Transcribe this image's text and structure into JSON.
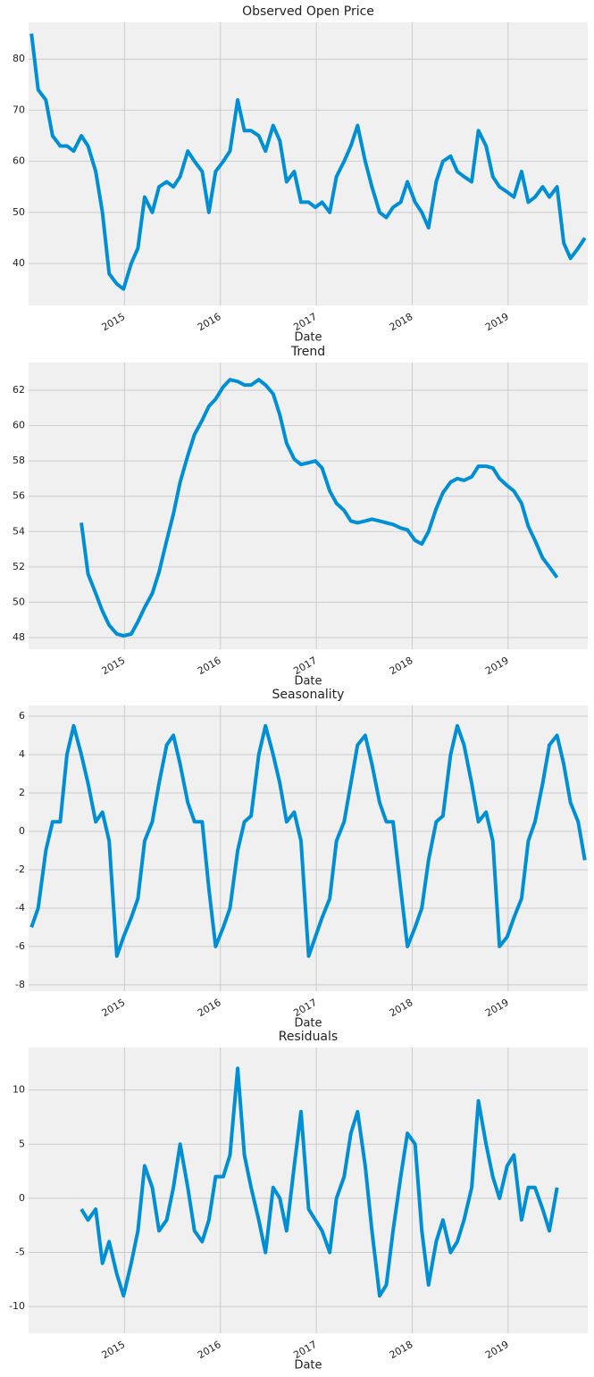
{
  "chart_data": [
    {
      "type": "line",
      "title": "Observed Open Price",
      "xlabel": "Date",
      "color": "#008fd5",
      "grid": true,
      "x": [
        2014.03,
        2014.1,
        2014.18,
        2014.25,
        2014.33,
        2014.4,
        2014.47,
        2014.55,
        2014.62,
        2014.7,
        2014.77,
        2014.84,
        2014.92,
        2014.99,
        2015.07,
        2015.14,
        2015.21,
        2015.29,
        2015.36,
        2015.44,
        2015.51,
        2015.58,
        2015.66,
        2015.73,
        2015.81,
        2015.88,
        2015.95,
        2016.03,
        2016.1,
        2016.18,
        2016.25,
        2016.32,
        2016.4,
        2016.47,
        2016.55,
        2016.62,
        2016.69,
        2016.77,
        2016.84,
        2016.92,
        2016.99,
        2017.06,
        2017.14,
        2017.21,
        2017.29,
        2017.36,
        2017.43,
        2017.51,
        2017.58,
        2017.66,
        2017.73,
        2017.8,
        2017.88,
        2017.95,
        2018.03,
        2018.1,
        2018.17,
        2018.25,
        2018.32,
        2018.4,
        2018.47,
        2018.54,
        2018.62,
        2018.69,
        2018.77,
        2018.84,
        2018.91,
        2018.99,
        2019.06,
        2019.14,
        2019.21,
        2019.28,
        2019.36,
        2019.43,
        2019.51,
        2019.58,
        2019.65,
        2019.73,
        2019.8
      ],
      "values": [
        85,
        74,
        72,
        65,
        63,
        63,
        62,
        65,
        63,
        58,
        50,
        38,
        36,
        35,
        40,
        43,
        53,
        50,
        55,
        56,
        55,
        57,
        62,
        60,
        58,
        50,
        58,
        60,
        62,
        72,
        66,
        66,
        65,
        62,
        67,
        64,
        56,
        58,
        52,
        52,
        51,
        52,
        50,
        57,
        60,
        63,
        67,
        60,
        55,
        50,
        49,
        51,
        52,
        56,
        52,
        50,
        47,
        56,
        60,
        61,
        58,
        57,
        56,
        66,
        63,
        57,
        55,
        54,
        53,
        58,
        52,
        53,
        55,
        53,
        55,
        44,
        41,
        43,
        45
      ],
      "xlim": [
        2014.0,
        2019.83
      ],
      "ylim": [
        31.8,
        87.2
      ],
      "xticks": [
        2015,
        2016,
        2017,
        2018,
        2019
      ],
      "yticks": [
        40,
        50,
        60,
        70,
        80
      ]
    },
    {
      "type": "line",
      "title": "Trend",
      "xlabel": "Date",
      "color": "#008fd5",
      "grid": true,
      "x": [
        2014.03,
        2014.1,
        2014.18,
        2014.25,
        2014.33,
        2014.4,
        2014.47,
        2014.55,
        2014.62,
        2014.7,
        2014.77,
        2014.84,
        2014.92,
        2014.99,
        2015.07,
        2015.14,
        2015.21,
        2015.29,
        2015.36,
        2015.44,
        2015.51,
        2015.58,
        2015.66,
        2015.73,
        2015.81,
        2015.88,
        2015.95,
        2016.03,
        2016.1,
        2016.18,
        2016.25,
        2016.32,
        2016.4,
        2016.47,
        2016.55,
        2016.62,
        2016.69,
        2016.77,
        2016.84,
        2016.92,
        2016.99,
        2017.06,
        2017.14,
        2017.21,
        2017.29,
        2017.36,
        2017.43,
        2017.51,
        2017.58,
        2017.66,
        2017.73,
        2017.8,
        2017.88,
        2017.95,
        2018.03,
        2018.1,
        2018.17,
        2018.25,
        2018.32,
        2018.4,
        2018.47,
        2018.54,
        2018.62,
        2018.69,
        2018.77,
        2018.84,
        2018.91,
        2018.99,
        2019.06,
        2019.14,
        2019.21,
        2019.28,
        2019.36,
        2019.43,
        2019.51,
        2019.58,
        2019.65,
        2019.73,
        2019.8
      ],
      "values": [
        null,
        null,
        null,
        null,
        null,
        null,
        null,
        54.5,
        51.6,
        50.5,
        49.5,
        48.7,
        48.2,
        48.1,
        48.2,
        48.9,
        49.7,
        50.5,
        51.7,
        53.5,
        55,
        56.8,
        58.3,
        59.5,
        60.3,
        61.1,
        61.5,
        62.2,
        62.6,
        62.5,
        62.3,
        62.3,
        62.6,
        62.3,
        61.8,
        60.6,
        59,
        58.1,
        57.8,
        57.9,
        58,
        57.6,
        56.3,
        55.6,
        55.2,
        54.6,
        54.5,
        54.6,
        54.7,
        54.6,
        54.5,
        54.4,
        54.2,
        54.1,
        53.5,
        53.3,
        54,
        55.3,
        56.2,
        56.8,
        57,
        56.9,
        57.1,
        57.7,
        57.7,
        57.6,
        57,
        56.6,
        56.3,
        55.6,
        54.3,
        53.5,
        52.5,
        52,
        51.4,
        null,
        null,
        null,
        null
      ],
      "xlim": [
        2014.0,
        2019.83
      ],
      "ylim": [
        47.34,
        63.57
      ],
      "xticks": [
        2015,
        2016,
        2017,
        2018,
        2019
      ],
      "yticks": [
        48,
        50,
        52,
        54,
        56,
        58,
        60,
        62
      ]
    },
    {
      "type": "line",
      "title": "Seasonality",
      "xlabel": "Date",
      "color": "#008fd5",
      "grid": true,
      "x": [
        2014.03,
        2014.1,
        2014.18,
        2014.25,
        2014.33,
        2014.4,
        2014.47,
        2014.55,
        2014.62,
        2014.7,
        2014.77,
        2014.84,
        2014.92,
        2014.99,
        2015.07,
        2015.14,
        2015.21,
        2015.29,
        2015.36,
        2015.44,
        2015.51,
        2015.58,
        2015.66,
        2015.73,
        2015.81,
        2015.88,
        2015.95,
        2016.03,
        2016.1,
        2016.18,
        2016.25,
        2016.32,
        2016.4,
        2016.47,
        2016.55,
        2016.62,
        2016.69,
        2016.77,
        2016.84,
        2016.92,
        2016.99,
        2017.06,
        2017.14,
        2017.21,
        2017.29,
        2017.36,
        2017.43,
        2017.51,
        2017.58,
        2017.66,
        2017.73,
        2017.8,
        2017.88,
        2017.95,
        2018.03,
        2018.1,
        2018.17,
        2018.25,
        2018.32,
        2018.4,
        2018.47,
        2018.54,
        2018.62,
        2018.69,
        2018.77,
        2018.84,
        2018.91,
        2018.99,
        2019.06,
        2019.14,
        2019.21,
        2019.28,
        2019.36,
        2019.43,
        2019.51,
        2019.58,
        2019.65,
        2019.73,
        2019.8
      ],
      "values": [
        -5,
        -4,
        -1,
        0.5,
        0.5,
        4,
        5.5,
        4,
        2.5,
        0.5,
        1,
        -0.5,
        -6.5,
        -5.5,
        -4.5,
        -3.5,
        -0.5,
        0.5,
        2.5,
        4.5,
        5,
        3.5,
        1.5,
        0.5,
        0.5,
        -3,
        -6,
        -5,
        -4,
        -1,
        0.5,
        0.8,
        4,
        5.5,
        4,
        2.5,
        0.5,
        1,
        -0.5,
        -6.5,
        -5.5,
        -4.5,
        -3.5,
        -0.5,
        0.5,
        2.5,
        4.5,
        5,
        3.5,
        1.5,
        0.5,
        0.5,
        -3,
        -6,
        -5,
        -4,
        -1.5,
        0.5,
        0.8,
        4,
        5.5,
        4.5,
        2.5,
        0.5,
        1,
        -0.5,
        -6,
        -5.5,
        -4.5,
        -3.5,
        -0.5,
        0.5,
        2.5,
        4.5,
        5,
        3.5,
        1.5,
        0.5,
        -1.5
      ],
      "xlim": [
        2014.0,
        2019.83
      ],
      "ylim": [
        -8.33,
        6.56
      ],
      "xticks": [
        2015,
        2016,
        2017,
        2018,
        2019
      ],
      "yticks": [
        -8,
        -6,
        -4,
        -2,
        0,
        2,
        4,
        6
      ]
    },
    {
      "type": "line",
      "title": "Residuals",
      "xlabel": "Date",
      "color": "#008fd5",
      "grid": true,
      "x": [
        2014.03,
        2014.1,
        2014.18,
        2014.25,
        2014.33,
        2014.4,
        2014.47,
        2014.55,
        2014.62,
        2014.7,
        2014.77,
        2014.84,
        2014.92,
        2014.99,
        2015.07,
        2015.14,
        2015.21,
        2015.29,
        2015.36,
        2015.44,
        2015.51,
        2015.58,
        2015.66,
        2015.73,
        2015.81,
        2015.88,
        2015.95,
        2016.03,
        2016.1,
        2016.18,
        2016.25,
        2016.32,
        2016.4,
        2016.47,
        2016.55,
        2016.62,
        2016.69,
        2016.77,
        2016.84,
        2016.92,
        2016.99,
        2017.06,
        2017.14,
        2017.21,
        2017.29,
        2017.36,
        2017.43,
        2017.51,
        2017.58,
        2017.66,
        2017.73,
        2017.8,
        2017.88,
        2017.95,
        2018.03,
        2018.1,
        2018.17,
        2018.25,
        2018.32,
        2018.4,
        2018.47,
        2018.54,
        2018.62,
        2018.69,
        2018.77,
        2018.84,
        2018.91,
        2018.99,
        2019.06,
        2019.14,
        2019.21,
        2019.28,
        2019.36,
        2019.43,
        2019.51,
        2019.58,
        2019.65,
        2019.73,
        2019.8
      ],
      "values": [
        null,
        null,
        null,
        null,
        null,
        null,
        null,
        -1,
        -2,
        -1,
        -6,
        -4,
        -7,
        -9,
        -6,
        -3,
        3,
        1,
        -3,
        -2,
        1,
        5,
        1,
        -3,
        -4,
        -2,
        2,
        2,
        4,
        12,
        4,
        1,
        -2,
        -5,
        1,
        0,
        -3,
        3,
        8,
        -1,
        -2,
        -3,
        -5,
        0,
        2,
        6,
        8,
        3,
        -3,
        -9,
        -8,
        -3,
        2,
        6,
        5,
        -3,
        -8,
        -4,
        -2,
        -5,
        -4,
        -2,
        1,
        9,
        5,
        2,
        0,
        3,
        4,
        -2,
        1,
        1,
        -1,
        -3,
        1,
        null,
        null,
        null,
        null
      ],
      "xlim": [
        2014.0,
        2019.83
      ],
      "ylim": [
        -12.46,
        13.93
      ],
      "xticks": [
        2015,
        2016,
        2017,
        2018,
        2019
      ],
      "yticks": [
        -10,
        -5,
        0,
        5,
        10
      ]
    }
  ]
}
